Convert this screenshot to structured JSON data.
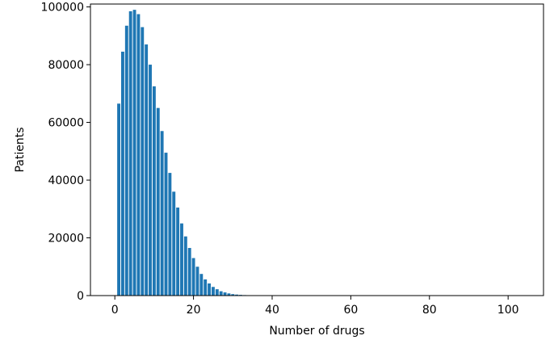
{
  "chart_data": {
    "type": "bar",
    "xlabel": "Number of drugs",
    "ylabel": "Patients",
    "xlim": [
      -6.2,
      109
    ],
    "ylim": [
      0,
      101000
    ],
    "xticks": [
      0,
      20,
      40,
      60,
      80,
      100
    ],
    "xtick_labels": [
      "0",
      "20",
      "40",
      "60",
      "80",
      "100"
    ],
    "yticks": [
      0,
      20000,
      40000,
      60000,
      80000,
      100000
    ],
    "ytick_labels": [
      "0",
      "20000",
      "40000",
      "60000",
      "80000",
      "100000"
    ],
    "bar_color": "#1f77b4",
    "grid": false,
    "x": [
      1,
      2,
      3,
      4,
      5,
      6,
      7,
      8,
      9,
      10,
      11,
      12,
      13,
      14,
      15,
      16,
      17,
      18,
      19,
      20,
      21,
      22,
      23,
      24,
      25,
      26,
      27,
      28,
      29,
      30,
      31,
      32,
      33,
      34,
      35,
      36,
      37,
      38,
      39,
      40,
      41,
      42,
      43,
      44,
      45,
      46,
      47,
      48,
      49,
      50,
      51,
      52,
      53,
      54,
      55,
      56,
      57,
      58,
      59,
      60,
      61,
      62,
      63,
      64,
      65,
      66,
      67,
      68,
      69,
      70,
      71,
      72,
      73,
      74,
      75,
      76,
      77,
      78,
      79,
      80,
      81,
      82,
      83,
      84,
      85,
      86,
      87,
      88,
      89,
      90,
      91,
      92,
      93,
      94,
      95,
      96,
      97,
      98,
      99,
      100,
      101,
      102,
      103,
      104
    ],
    "values": [
      66500,
      84500,
      93500,
      98500,
      99000,
      97500,
      93000,
      87000,
      80000,
      72500,
      65000,
      57000,
      49500,
      42500,
      36000,
      30500,
      25000,
      20500,
      16500,
      13000,
      10000,
      7500,
      5600,
      4200,
      3000,
      2200,
      1500,
      1100,
      750,
      500,
      350,
      250,
      170,
      120,
      80,
      55,
      40,
      28,
      20,
      14,
      10,
      8,
      6,
      5,
      4,
      3,
      3,
      2,
      2,
      2,
      1,
      1,
      1,
      1,
      1,
      1,
      1,
      1,
      1,
      1,
      1,
      1,
      1,
      1,
      1,
      1,
      1,
      1,
      1,
      1,
      1,
      1,
      1,
      1,
      1,
      1,
      1,
      1,
      1,
      1,
      1,
      1,
      1,
      1,
      1,
      1,
      1,
      1,
      1,
      1,
      1,
      1,
      1,
      1,
      1,
      1,
      1,
      1,
      1,
      1,
      1,
      1,
      1,
      1
    ]
  }
}
